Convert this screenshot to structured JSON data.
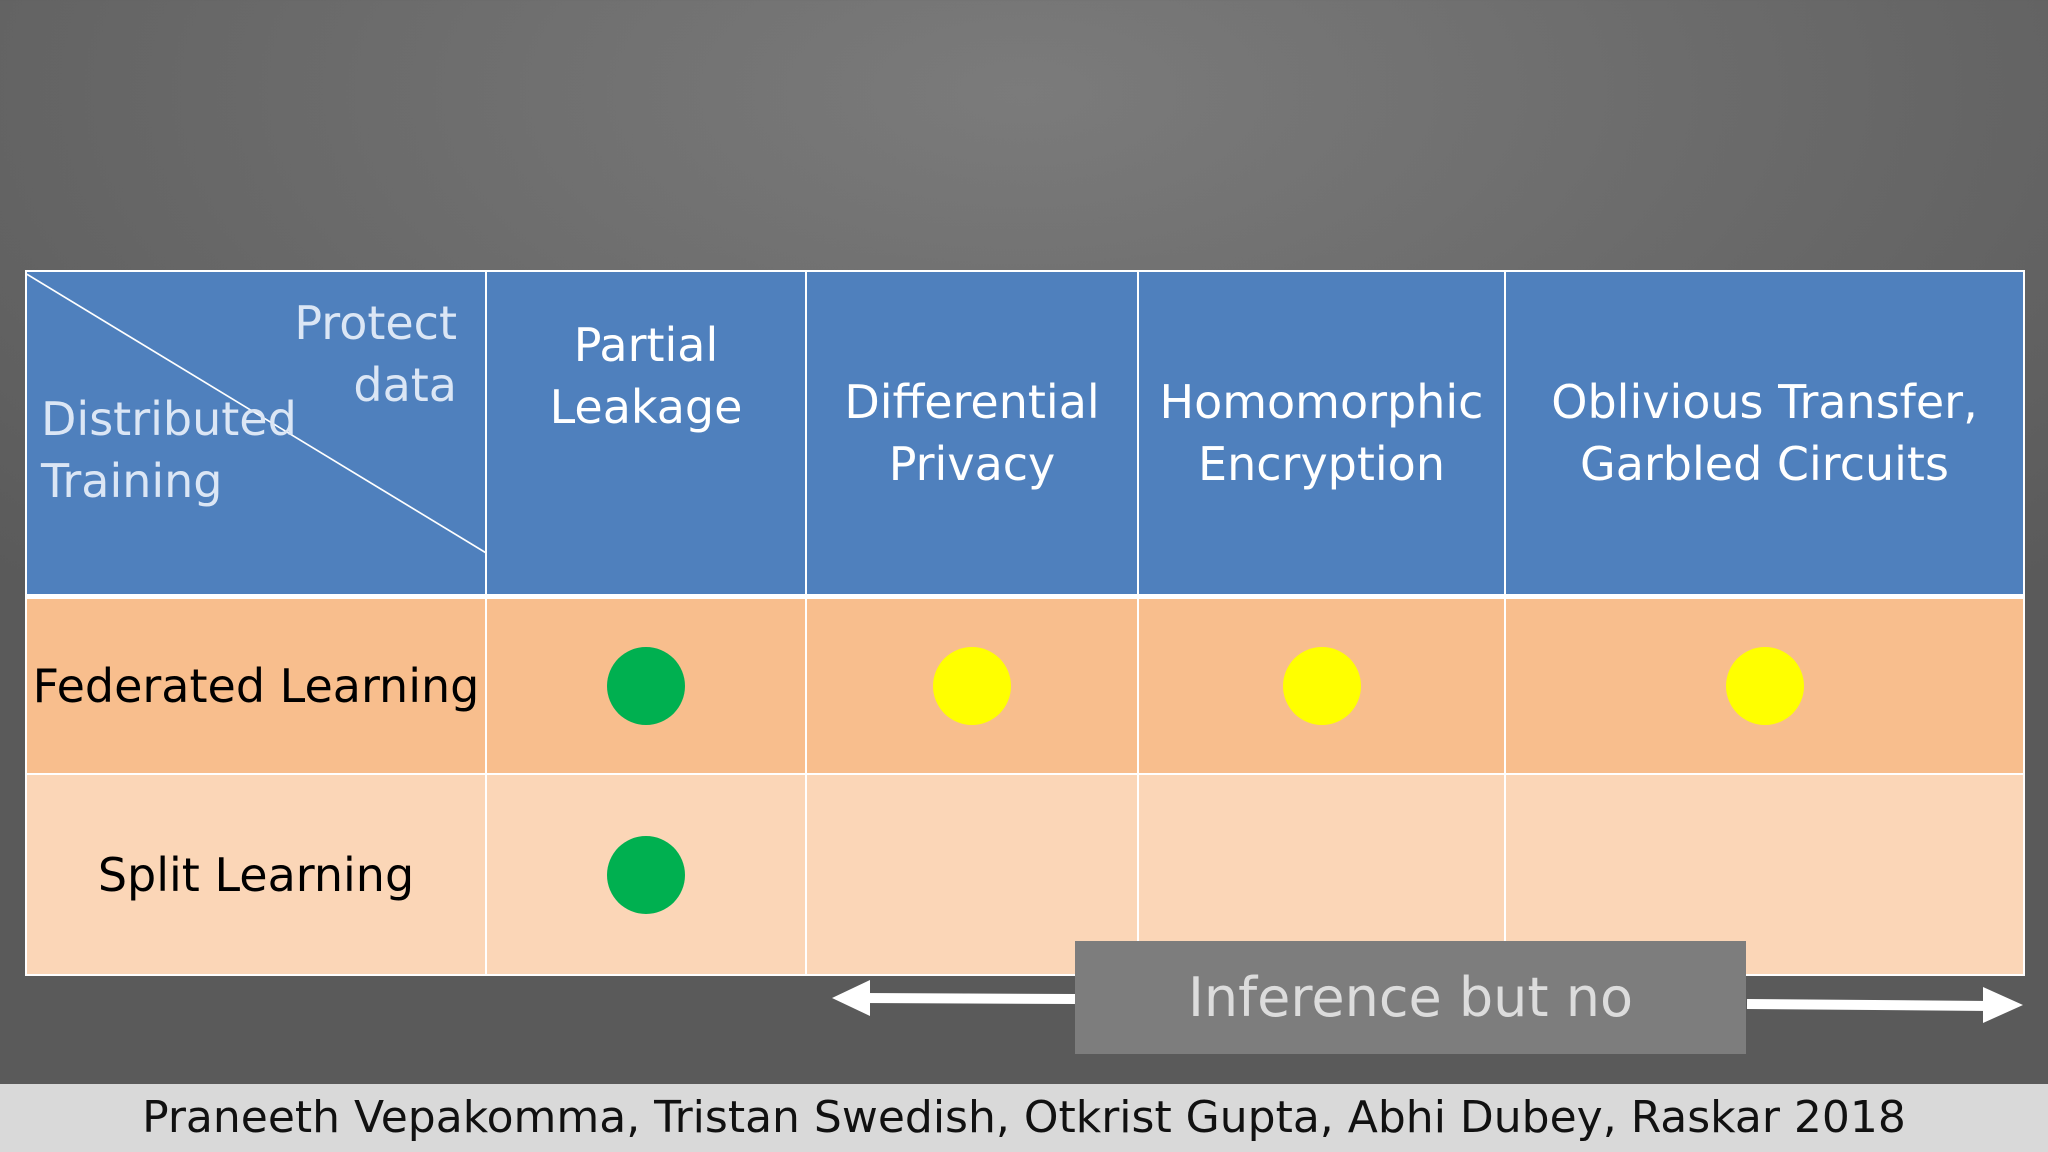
{
  "table": {
    "corner": {
      "top_line1": "Protect",
      "top_line2": "data",
      "bottom_line1": "Distributed",
      "bottom_line2": "Training"
    },
    "columns": [
      {
        "line1": "Partial",
        "line2": "Leakage"
      },
      {
        "line1": "Differential",
        "line2": "Privacy"
      },
      {
        "line1": "Homomorphic",
        "line2": "Encryption"
      },
      {
        "line1": "Oblivious Transfer,",
        "line2": "Garbled Circuits"
      }
    ],
    "rows": [
      {
        "label": "Federated Learning",
        "marks": [
          "green",
          "yellow",
          "yellow",
          "yellow"
        ]
      },
      {
        "label": "Split Learning",
        "marks": [
          "green",
          "",
          "",
          ""
        ]
      }
    ]
  },
  "inference": {
    "label": "Inference but no training"
  },
  "citation": {
    "text": "Praneeth Vepakomma, Tristan Swedish, Otkrist Gupta, Abhi Dubey, Raskar 2018"
  },
  "colors": {
    "green": "#00b050",
    "yellow": "#ffff00",
    "header_blue": "#4f80bd",
    "row_orange": "#f8be8d",
    "row_peach": "#fbd6b7"
  }
}
